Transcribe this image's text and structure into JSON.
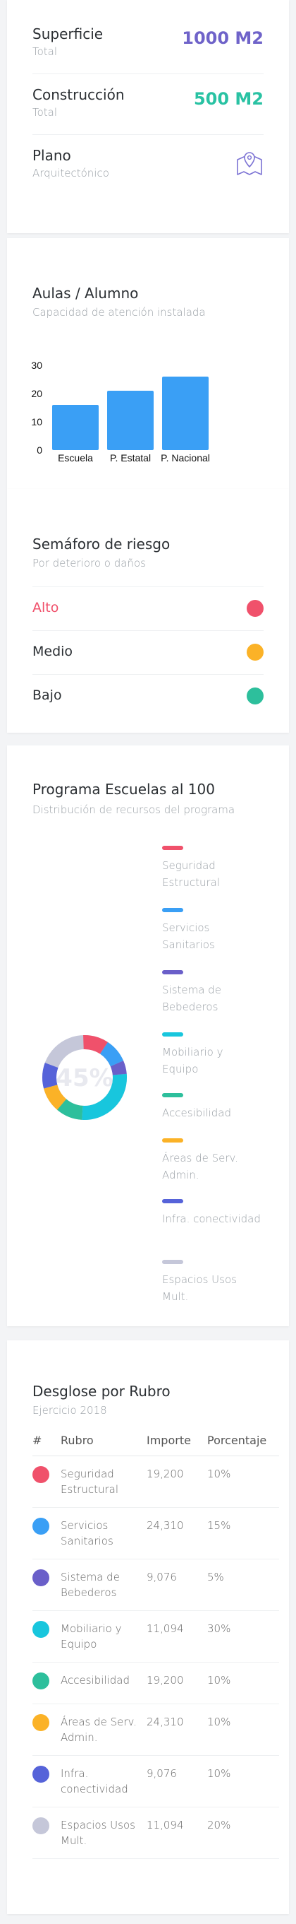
{
  "summary": {
    "rows": [
      {
        "label": "Superficie",
        "sub": "Total",
        "value": "1000 M2",
        "value_color": "#6f63c9"
      },
      {
        "label": "Construcción",
        "sub": "Total",
        "value": "500 M2",
        "value_color": "#29c2a3"
      },
      {
        "label": "Plano",
        "sub": "Arquitectónico",
        "icon": "map-location-icon"
      }
    ]
  },
  "aulas": {
    "title": "Aulas / Alumno",
    "subtitle": "Capacidad de atención instalada",
    "bar_color": "#3a9ff5"
  },
  "chart_data": {
    "type": "bar",
    "categories": [
      "Escuela",
      "P. Estatal",
      "P. Nacional"
    ],
    "values": [
      16,
      21,
      26
    ],
    "yticks": [
      0,
      10,
      20,
      30
    ],
    "ylim": [
      0,
      30
    ],
    "title": "",
    "xlabel": "",
    "ylabel": ""
  },
  "semaforo": {
    "title": "Semáforo de riesgo",
    "subtitle": "Por deterioro o daños",
    "items": [
      {
        "label": "Alto",
        "color": "#f0516b",
        "label_color": "#f0516b"
      },
      {
        "label": "Medio",
        "color": "#fbb227",
        "label_color": "#2b2f33"
      },
      {
        "label": "Bajo",
        "color": "#2dbf9c",
        "label_color": "#2b2f33"
      }
    ]
  },
  "programa": {
    "title": "Programa Escuelas al 100",
    "subtitle": "Distribución de recursos del programa",
    "center_text": "45%",
    "legend": [
      {
        "label": "Seguridad Estructural",
        "color": "#f0516b"
      },
      {
        "label": "Servicios Sanitarios",
        "color": "#3a9ff5"
      },
      {
        "label": "Sistema de Bebederos",
        "color": "#6a5fc9"
      },
      {
        "label": "Mobiliario y Equipo",
        "color": "#18c6dd"
      },
      {
        "label": "Accesibilidad",
        "color": "#2dbf9c"
      },
      {
        "label": "Áreas de Serv. Admin.",
        "color": "#fbb227"
      },
      {
        "label": "Infra. conectividad",
        "color": "#5663d9"
      },
      {
        "label": "Espacios Usos Mult.",
        "color": "#c5c7d9"
      }
    ]
  },
  "desglose": {
    "title": "Desglose por Rubro",
    "subtitle": "Ejercicio 2018",
    "headers": [
      "#",
      "Rubro",
      "Importe",
      "Porcentaje"
    ],
    "rows": [
      {
        "rubro": "Seguridad Estructural",
        "importe": "19,200",
        "pct": "10%",
        "color": "#f0516b"
      },
      {
        "rubro": "Servicios Sanitarios",
        "importe": "24,310",
        "pct": "15%",
        "color": "#3a9ff5"
      },
      {
        "rubro": "Sistema de Bebederos",
        "importe": "9,076",
        "pct": "5%",
        "color": "#6a5fc9"
      },
      {
        "rubro": "Mobiliario y Equipo",
        "importe": "11,094",
        "pct": "30%",
        "color": "#18c6dd"
      },
      {
        "rubro": "Accesibilidad",
        "importe": "19,200",
        "pct": "10%",
        "color": "#2dbf9c"
      },
      {
        "rubro": "Áreas de Serv. Admin.",
        "importe": "24,310",
        "pct": "10%",
        "color": "#fbb227"
      },
      {
        "rubro": "Infra. conectividad",
        "importe": "9,076",
        "pct": "10%",
        "color": "#5663d9"
      },
      {
        "rubro": "Espacios Usos Mult.",
        "importe": "11,094",
        "pct": "20%",
        "color": "#c5c7d9"
      }
    ]
  }
}
